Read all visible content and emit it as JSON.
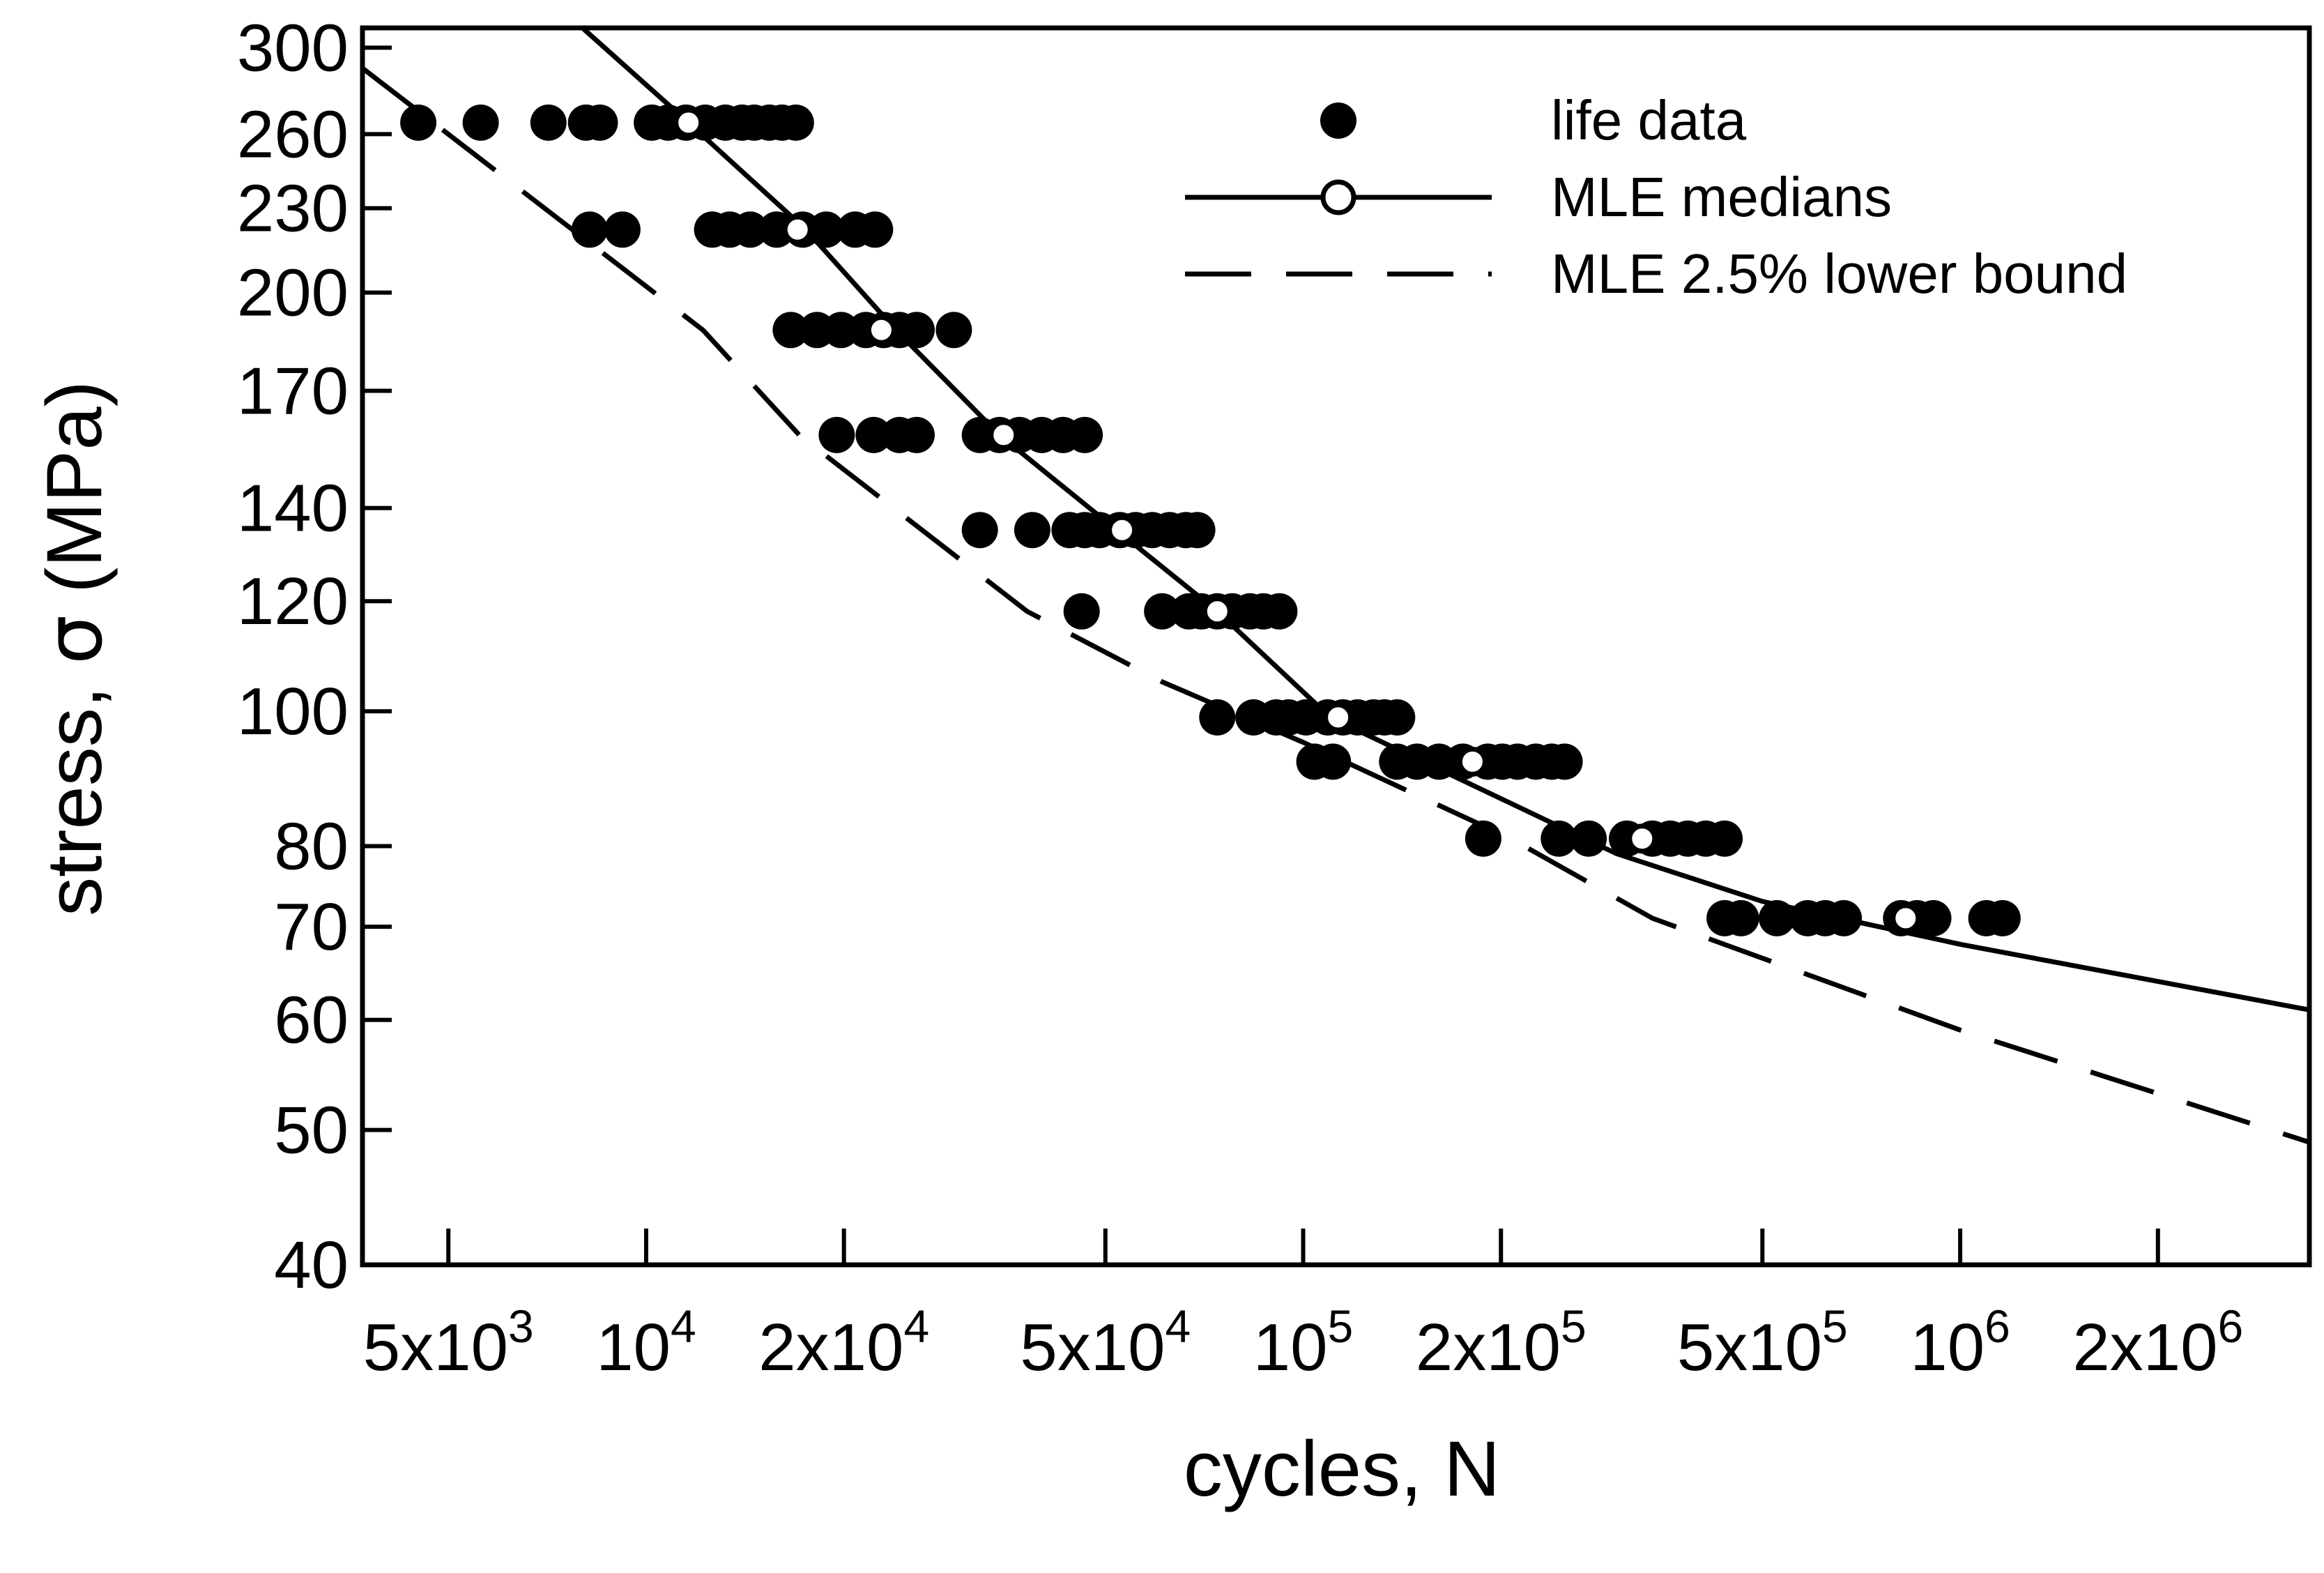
{
  "chart_data": {
    "type": "scatter",
    "title": "",
    "xlabel": "cycles, N",
    "ylabel_prefix": "stress, ",
    "ylabel_symbol": "σ",
    "ylabel_suffix": " (MPa)",
    "xscale": "log",
    "yscale": "log",
    "xlim": [
      3700,
      3400000
    ],
    "ylim": [
      40,
      310
    ],
    "x_ticks": [
      {
        "value": 5000,
        "mantissa": "5x10",
        "exp": "3"
      },
      {
        "value": 10000,
        "mantissa": "10",
        "exp": "4"
      },
      {
        "value": 20000,
        "mantissa": "2x10",
        "exp": "4"
      },
      {
        "value": 50000,
        "mantissa": "5x10",
        "exp": "4"
      },
      {
        "value": 100000,
        "mantissa": "10",
        "exp": "5"
      },
      {
        "value": 200000,
        "mantissa": "2x10",
        "exp": "5"
      },
      {
        "value": 500000,
        "mantissa": "5x10",
        "exp": "5"
      },
      {
        "value": 1000000,
        "mantissa": "10",
        "exp": "6"
      },
      {
        "value": 2000000,
        "mantissa": "2x10",
        "exp": "6"
      }
    ],
    "y_ticks": [
      {
        "value": 40,
        "label": "40"
      },
      {
        "value": 50,
        "label": "50"
      },
      {
        "value": 60,
        "label": "60"
      },
      {
        "value": 70,
        "label": "70"
      },
      {
        "value": 80,
        "label": "80"
      },
      {
        "value": 100,
        "label": "100"
      },
      {
        "value": 120,
        "label": "120"
      },
      {
        "value": 140,
        "label": "140"
      },
      {
        "value": 170,
        "label": "170"
      },
      {
        "value": 200,
        "label": "200"
      },
      {
        "value": 230,
        "label": "230"
      },
      {
        "value": 260,
        "label": "260"
      },
      {
        "value": 300,
        "label": "300"
      }
    ],
    "legend": {
      "position": "top-right",
      "entries": [
        {
          "label": "life data",
          "style": "filled-dot"
        },
        {
          "label": "MLE medians",
          "style": "solid-line-open-dot"
        },
        {
          "label": "MLE 2.5% lower bound",
          "style": "dashed-line"
        }
      ]
    },
    "series": [
      {
        "name": "life data",
        "style": "filled-dot",
        "points": [
          [
            4500,
            265
          ],
          [
            5600,
            265
          ],
          [
            7100,
            265
          ],
          [
            8100,
            265
          ],
          [
            8500,
            265
          ],
          [
            10200,
            265
          ],
          [
            10800,
            265
          ],
          [
            11500,
            265
          ],
          [
            12300,
            265
          ],
          [
            13200,
            265
          ],
          [
            14000,
            265
          ],
          [
            14600,
            265
          ],
          [
            15400,
            265
          ],
          [
            16100,
            265
          ],
          [
            16900,
            265
          ],
          [
            8200,
            222
          ],
          [
            9200,
            222
          ],
          [
            12600,
            222
          ],
          [
            13400,
            222
          ],
          [
            14400,
            222
          ],
          [
            15800,
            222
          ],
          [
            17300,
            222
          ],
          [
            18800,
            222
          ],
          [
            20800,
            222
          ],
          [
            22300,
            222
          ],
          [
            16600,
            188
          ],
          [
            18200,
            188
          ],
          [
            19800,
            188
          ],
          [
            21600,
            188
          ],
          [
            23000,
            188
          ],
          [
            24300,
            188
          ],
          [
            25800,
            188
          ],
          [
            29400,
            188
          ],
          [
            19500,
            158
          ],
          [
            22200,
            158
          ],
          [
            24300,
            158
          ],
          [
            25800,
            158
          ],
          [
            32200,
            158
          ],
          [
            34500,
            158
          ],
          [
            37000,
            158
          ],
          [
            40000,
            158
          ],
          [
            43100,
            158
          ],
          [
            46500,
            158
          ],
          [
            32200,
            135
          ],
          [
            38700,
            135
          ],
          [
            44100,
            135
          ],
          [
            46500,
            135
          ],
          [
            49000,
            135
          ],
          [
            52600,
            135
          ],
          [
            55600,
            135
          ],
          [
            58900,
            135
          ],
          [
            62600,
            135
          ],
          [
            66300,
            135
          ],
          [
            69000,
            135
          ],
          [
            46000,
            118
          ],
          [
            61000,
            118
          ],
          [
            67000,
            118
          ],
          [
            70000,
            118
          ],
          [
            74000,
            118
          ],
          [
            78000,
            118
          ],
          [
            83000,
            118
          ],
          [
            87000,
            118
          ],
          [
            92000,
            118
          ],
          [
            74000,
            99
          ],
          [
            84000,
            99
          ],
          [
            91000,
            99
          ],
          [
            95000,
            99
          ],
          [
            101000,
            99
          ],
          [
            109000,
            99
          ],
          [
            115000,
            99
          ],
          [
            121000,
            99
          ],
          [
            128000,
            99
          ],
          [
            133000,
            99
          ],
          [
            139000,
            99
          ],
          [
            104000,
            92
          ],
          [
            111000,
            92
          ],
          [
            139000,
            92
          ],
          [
            149000,
            92
          ],
          [
            161000,
            92
          ],
          [
            175000,
            92
          ],
          [
            191000,
            92
          ],
          [
            201000,
            92
          ],
          [
            212000,
            92
          ],
          [
            226000,
            92
          ],
          [
            239000,
            92
          ],
          [
            250000,
            92
          ],
          [
            188000,
            81
          ],
          [
            245000,
            81
          ],
          [
            272000,
            81
          ],
          [
            311000,
            81
          ],
          [
            340000,
            81
          ],
          [
            362000,
            81
          ],
          [
            385000,
            81
          ],
          [
            410000,
            81
          ],
          [
            438000,
            81
          ],
          [
            438000,
            71
          ],
          [
            464000,
            71
          ],
          [
            526000,
            71
          ],
          [
            586000,
            71
          ],
          [
            623000,
            71
          ],
          [
            665000,
            71
          ],
          [
            813000,
            71
          ],
          [
            860000,
            71
          ],
          [
            910000,
            71
          ],
          [
            1096000,
            71
          ],
          [
            1160000,
            71
          ]
        ]
      },
      {
        "name": "MLE medians",
        "style": "solid-line",
        "line": [
          [
            7700,
            315
          ],
          [
            11600,
            265
          ],
          [
            17500,
            222
          ],
          [
            24000,
            188
          ],
          [
            34500,
            158
          ],
          [
            52000,
            135
          ],
          [
            74000,
            118
          ],
          [
            110000,
            99
          ],
          [
            300000,
            79
          ],
          [
            500000,
            73
          ],
          [
            1000000,
            68
          ],
          [
            3400000,
            61
          ]
        ],
        "markers": [
          [
            11600,
            265
          ],
          [
            17000,
            222
          ],
          [
            22800,
            188
          ],
          [
            35000,
            158
          ],
          [
            53000,
            135
          ],
          [
            74000,
            118
          ],
          [
            113000,
            99
          ],
          [
            181000,
            92
          ],
          [
            328000,
            81
          ],
          [
            826000,
            71
          ]
        ]
      },
      {
        "name": "MLE 2.5% lower bound",
        "style": "dashed-line",
        "line": [
          [
            3700,
            290
          ],
          [
            12200,
            188
          ],
          [
            17100,
            158
          ],
          [
            38000,
            118
          ],
          [
            61000,
            105
          ],
          [
            100000,
            95
          ],
          [
            207000,
            81
          ],
          [
            340000,
            71
          ],
          [
            1000000,
            59
          ],
          [
            3400000,
            49
          ]
        ]
      }
    ]
  }
}
